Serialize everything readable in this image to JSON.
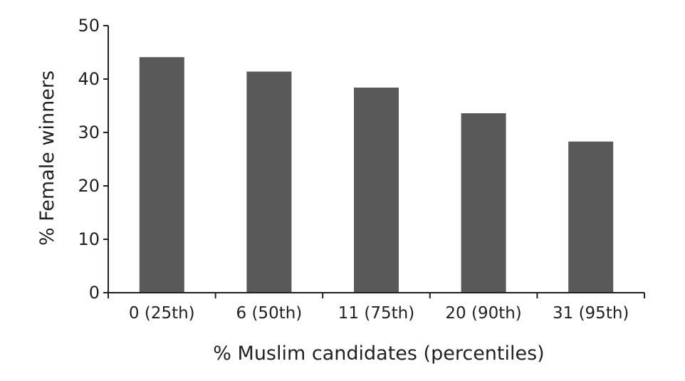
{
  "chart_data": {
    "type": "bar",
    "title": "",
    "xlabel": "% Muslim candidates (percentiles)",
    "ylabel": "% Female winners",
    "categories": [
      "0 (25th)",
      "6 (50th)",
      "11 (75th)",
      "20 (90th)",
      "31 (95th)"
    ],
    "values": [
      44.1,
      41.4,
      38.4,
      33.6,
      28.3
    ],
    "ylim": [
      0,
      50
    ],
    "yticks": [
      "0",
      "10",
      "20",
      "30",
      "40",
      "50"
    ],
    "grid": false,
    "legend": "none",
    "bar_color": "#595959",
    "axis_color": "#231f20"
  }
}
